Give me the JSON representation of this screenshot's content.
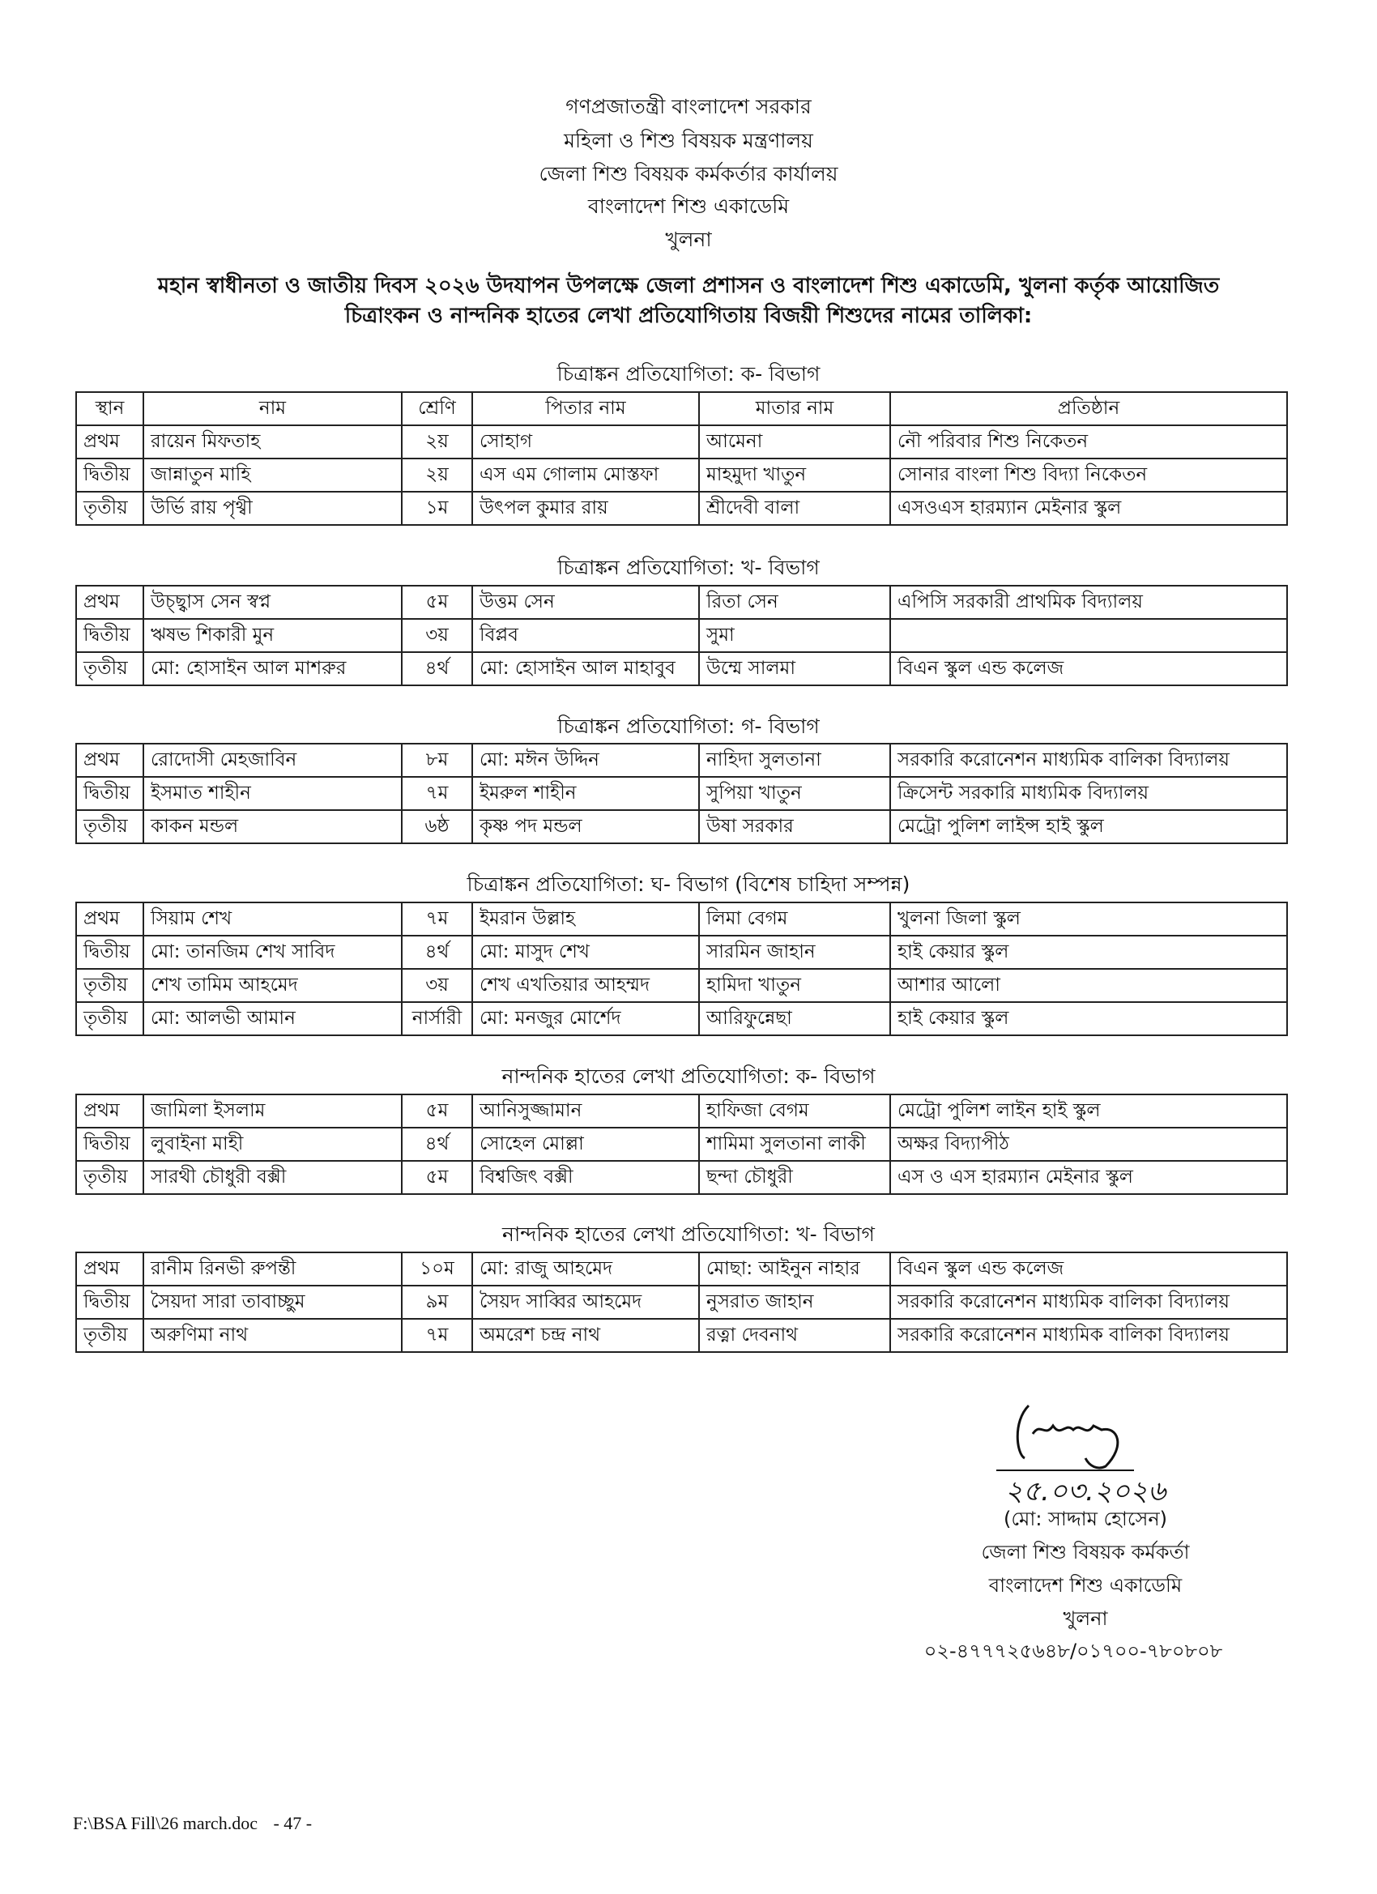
{
  "header": {
    "lines": [
      "গণপ্রজাতন্ত্রী বাংলাদেশ সরকার",
      "মহিলা ও শিশু বিষয়ক মন্ত্রণালয়",
      "জেলা শিশু বিষয়ক কর্মকর্তার কার্যালয়",
      "বাংলাদেশ শিশু একাডেমি",
      "খুলনা"
    ],
    "subtitle": [
      "মহান স্বাধীনতা ও জাতীয় দিবস ২০২৬ উদযাপন উপলক্ষে জেলা প্রশাসন ও বাংলাদেশ শিশু একাডেমি, খুলনা কর্তৃক আয়োজিত",
      "চিত্রাংকন ও নান্দনিক হাতের লেখা প্রতিযোগিতায় বিজয়ী শিশুদের নামের তালিকা:"
    ]
  },
  "columns": [
    "স্থান",
    "নাম",
    "শ্রেণি",
    "পিতার নাম",
    "মাতার নাম",
    "প্রতিষ্ঠান"
  ],
  "sections": [
    {
      "title": "চিত্রাঙ্কন প্রতিযোগিতা: ক- বিভাগ",
      "rows": [
        [
          "প্রথম",
          "রায়েন মিফতাহ",
          "২য়",
          "সোহাগ",
          "আমেনা",
          "নৌ পরিবার শিশু নিকেতন"
        ],
        [
          "দ্বিতীয়",
          "জান্নাতুন মাহি",
          "২য়",
          "এস এম গোলাম মোস্তফা",
          "মাহমুদা খাতুন",
          "সোনার বাংলা শিশু বিদ্যা নিকেতন"
        ],
        [
          "তৃতীয়",
          "উর্ভি রায় পৃথ্বী",
          "১ম",
          "উৎপল কুমার রায়",
          "শ্রীদেবী বালা",
          "এসওএস হারম্যান মেইনার স্কুল"
        ]
      ]
    },
    {
      "title": "চিত্রাঙ্কন প্রতিযোগিতা: খ- বিভাগ",
      "rows": [
        [
          "প্রথম",
          "উচ্ছ্বাস সেন স্বপ্ন",
          "৫ম",
          "উত্তম সেন",
          "রিতা সেন",
          "এপিসি সরকারী প্রাথমিক বিদ্যালয়"
        ],
        [
          "দ্বিতীয়",
          "ঋষভ শিকারী মুন",
          "৩য়",
          "বিপ্লব",
          "সুমা",
          ""
        ],
        [
          "তৃতীয়",
          "মো: হোসাইন আল মাশরুর",
          "৪র্থ",
          "মো: হোসাইন আল মাহাবুব",
          "উম্মে সালমা",
          "বিএন স্কুল এন্ড কলেজ"
        ]
      ]
    },
    {
      "title": "চিত্রাঙ্কন প্রতিযোগিতা: গ- বিভাগ",
      "rows": [
        [
          "প্রথম",
          "রোদোসী মেহজাবিন",
          "৮ম",
          "মো: মঈন উদ্দিন",
          "নাহিদা সুলতানা",
          "সরকারি করোনেশন মাধ্যমিক বালিকা বিদ্যালয়"
        ],
        [
          "দ্বিতীয়",
          "ইসমাত শাহীন",
          "৭ম",
          "ইমরুল শাহীন",
          "সুপিয়া খাতুন",
          "ক্রিসেন্ট সরকারি মাধ্যমিক বিদ্যালয়"
        ],
        [
          "তৃতীয়",
          "কাকন মন্ডল",
          "৬ষ্ঠ",
          "কৃষ্ণ পদ মন্ডল",
          "উষা সরকার",
          "মেট্রো পুলিশ লাইন্স হাই স্কুল"
        ]
      ]
    },
    {
      "title": "চিত্রাঙ্কন প্রতিযোগিতা: ঘ- বিভাগ (বিশেষ চাহিদা সম্পন্ন)",
      "rows": [
        [
          "প্রথম",
          "সিয়াম শেখ",
          "৭ম",
          "ইমরান উল্লাহ",
          "লিমা বেগম",
          "খুলনা জিলা স্কুল"
        ],
        [
          "দ্বিতীয়",
          "মো: তানজিম শেখ সাবিদ",
          "৪র্থ",
          "মো: মাসুদ শেখ",
          "সারমিন জাহান",
          "হাই কেয়ার স্কুল"
        ],
        [
          "তৃতীয়",
          "শেখ তামিম আহমেদ",
          "৩য়",
          "শেখ এখতিয়ার আহম্মদ",
          "হামিদা খাতুন",
          "আশার আলো"
        ],
        [
          "তৃতীয়",
          "মো: আলভী আমান",
          "নার্সারী",
          "মো: মনজুর মোর্শেদ",
          "আরিফুন্নেছা",
          "হাই কেয়ার স্কুল"
        ]
      ]
    },
    {
      "title": "নান্দনিক হাতের লেখা প্রতিযোগিতা: ক- বিভাগ",
      "rows": [
        [
          "প্রথম",
          "জামিলা ইসলাম",
          "৫ম",
          "আনিসুজ্জামান",
          "হাফিজা বেগম",
          "মেট্রো পুলিশ লাইন হাই স্কুল"
        ],
        [
          "দ্বিতীয়",
          "লুবাইনা মাহী",
          "৪র্থ",
          "সোহেল মোল্লা",
          "শামিমা সুলতানা লাকী",
          "অক্ষর বিদ্যাপীঠ"
        ],
        [
          "তৃতীয়",
          "সারথী চৌধুরী বক্সী",
          "৫ম",
          "বিশ্বজিৎ বক্সী",
          "ছন্দা চৌধুরী",
          "এস ও এস হারম্যান মেইনার স্কুল"
        ]
      ]
    },
    {
      "title": "নান্দনিক হাতের লেখা প্রতিযোগিতা: খ- বিভাগ",
      "rows": [
        [
          "প্রথম",
          "রানীম রিনভী রুপন্তী",
          "১০ম",
          "মো: রাজু আহমেদ",
          "মোছা: আইনুন নাহার",
          "বিএন স্কুল এন্ড কলেজ"
        ],
        [
          "দ্বিতীয়",
          "সৈয়দা সারা তাবাচ্ছুম",
          "৯ম",
          "সৈয়দ সাব্বির আহমেদ",
          "নুসরাত জাহান",
          "সরকারি করোনেশন মাধ্যমিক বালিকা বিদ্যালয়"
        ],
        [
          "তৃতীয়",
          "অরুণিমা নাথ",
          "৭ম",
          "অমরেশ চন্দ্র নাথ",
          "রত্না দেবনাথ",
          "সরকারি করোনেশন মাধ্যমিক বালিকা বিদ্যালয়"
        ]
      ]
    }
  ],
  "signature": {
    "handwritten_name": "সাদ্দাম",
    "date": "২৫.০৩.২০২৬",
    "name": "(মো: সাদ্দাম হোসেন)",
    "designation": "জেলা শিশু বিষয়ক কর্মকর্তা",
    "org": "বাংলাদেশ শিশু একাডেমি",
    "city": "খুলনা",
    "phone": "০২-৪৭৭৭২৫৬৪৮/০১৭০০-৭৮০৮০৮"
  },
  "footer": {
    "path": "F:\\BSA Fill\\26 march.doc",
    "page": "- 47 -"
  }
}
